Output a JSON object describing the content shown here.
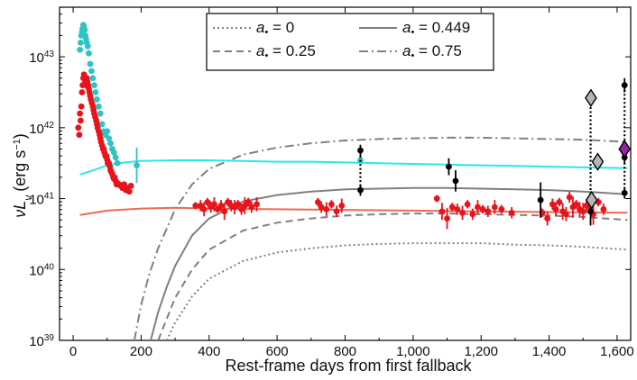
{
  "chart_data": {
    "type": "scatter",
    "xlabel": "Rest-frame days from first fallback",
    "ylabel_main": "νL",
    "ylabel_sub": "ν",
    "ylabel_unit": "(erg s",
    "ylabel_unit_exp": "−1",
    "ylabel_unit_close": ")",
    "xlim": [
      -40,
      1640
    ],
    "ylim_log10": [
      39,
      43.7
    ],
    "x_ticks": [
      {
        "value": 0,
        "label": "0"
      },
      {
        "value": 200,
        "label": "200"
      },
      {
        "value": 400,
        "label": "400"
      },
      {
        "value": 600,
        "label": "600"
      },
      {
        "value": 800,
        "label": "800"
      },
      {
        "value": 1000,
        "label": "1,000"
      },
      {
        "value": 1200,
        "label": "1,200"
      },
      {
        "value": 1400,
        "label": "1,400"
      },
      {
        "value": 1600,
        "label": "1,600"
      }
    ],
    "y_ticks": [
      {
        "exp": 39,
        "base": "10",
        "sup": "39"
      },
      {
        "exp": 40,
        "base": "10",
        "sup": "40"
      },
      {
        "exp": 41,
        "base": "10",
        "sup": "41"
      },
      {
        "exp": 42,
        "base": "10",
        "sup": "42"
      },
      {
        "exp": 43,
        "base": "10",
        "sup": "43"
      }
    ],
    "legend": {
      "location": "top-center",
      "entries": [
        {
          "label": "0",
          "style": "dotted"
        },
        {
          "label": "0.449",
          "style": "solid"
        },
        {
          "label": "0.25",
          "style": "dashed"
        },
        {
          "label": "0.75",
          "style": "dashdot"
        }
      ],
      "prefix": "a",
      "bullet": "•",
      "equals": " = "
    },
    "colors": {
      "red": "#e8131b",
      "cyan": "#2ec4c4",
      "cyan_line": "#27e8ec",
      "salmon_line": "#ec6a56",
      "model_gray": "#808080",
      "black": "#000000",
      "magenta": "#9a1fa8",
      "diamond_fill": "#b5b5b5"
    },
    "series": [
      {
        "name": "model a=0",
        "style": "dotted",
        "x": [
          275,
          300,
          350,
          400,
          500,
          600,
          700,
          800,
          900,
          1000,
          1100,
          1200,
          1300,
          1400,
          1500,
          1630
        ],
        "log_y": [
          39.0,
          39.25,
          39.62,
          39.87,
          40.12,
          40.24,
          40.3,
          40.34,
          40.36,
          40.37,
          40.37,
          40.37,
          40.35,
          40.34,
          40.32,
          40.28
        ]
      },
      {
        "name": "model a=0.25",
        "style": "dashed",
        "x": [
          250,
          275,
          300,
          350,
          400,
          500,
          600,
          700,
          800,
          900,
          1000,
          1100,
          1200,
          1300,
          1400,
          1500,
          1630
        ],
        "log_y": [
          39.0,
          39.3,
          39.6,
          40.0,
          40.28,
          40.55,
          40.66,
          40.72,
          40.76,
          40.78,
          40.79,
          40.79,
          40.78,
          40.77,
          40.76,
          40.74,
          40.7
        ]
      },
      {
        "name": "model a=0.449",
        "style": "solid",
        "x": [
          228,
          250,
          275,
          300,
          350,
          400,
          500,
          600,
          700,
          800,
          900,
          1000,
          1100,
          1200,
          1300,
          1400,
          1500,
          1630
        ],
        "log_y": [
          39.0,
          39.4,
          39.75,
          40.05,
          40.48,
          40.72,
          40.96,
          41.05,
          41.1,
          41.13,
          41.14,
          41.15,
          41.15,
          41.14,
          41.13,
          41.12,
          41.1,
          41.06
        ]
      },
      {
        "name": "model a=0.75",
        "style": "dashdot",
        "x": [
          180,
          200,
          225,
          250,
          300,
          350,
          400,
          500,
          600,
          700,
          800,
          900,
          1000,
          1100,
          1200,
          1300,
          1400,
          1500,
          1630
        ],
        "log_y": [
          39.0,
          39.5,
          39.95,
          40.3,
          40.85,
          41.2,
          41.42,
          41.62,
          41.72,
          41.78,
          41.82,
          41.84,
          41.85,
          41.86,
          41.86,
          41.85,
          41.84,
          41.83,
          41.8
        ]
      },
      {
        "name": "cyan model",
        "style": "cyan",
        "x": [
          20,
          60,
          100,
          150,
          200,
          300,
          400,
          500,
          600,
          700,
          800,
          900,
          1000,
          1100,
          1200,
          1300,
          1400,
          1500,
          1630
        ],
        "log_y": [
          41.34,
          41.4,
          41.47,
          41.51,
          41.53,
          41.54,
          41.54,
          41.53,
          41.52,
          41.52,
          41.51,
          41.5,
          41.49,
          41.48,
          41.47,
          41.46,
          41.45,
          41.44,
          41.43
        ]
      },
      {
        "name": "salmon model",
        "style": "salmon",
        "x": [
          20,
          100,
          200,
          300,
          400,
          600,
          800,
          1000,
          1200,
          1400,
          1630
        ],
        "log_y": [
          40.77,
          40.83,
          40.86,
          40.87,
          40.86,
          40.85,
          40.84,
          40.83,
          40.82,
          40.81,
          40.8
        ]
      },
      {
        "name": "cyan data",
        "type": "scatter",
        "x": [
          20,
          22,
          24,
          26,
          28,
          30,
          32,
          34,
          36,
          38,
          40,
          43,
          46,
          50,
          54,
          58,
          62,
          66,
          70,
          75,
          80,
          85,
          90,
          95,
          100,
          105,
          110,
          115,
          120,
          125,
          130
        ],
        "log_y": [
          43.1,
          43.2,
          43.3,
          43.35,
          43.4,
          43.45,
          43.42,
          43.38,
          43.3,
          43.25,
          43.2,
          43.15,
          43.05,
          42.9,
          42.8,
          42.7,
          42.6,
          42.5,
          42.4,
          42.3,
          42.2,
          42.05,
          41.95,
          41.9,
          41.95,
          41.85,
          41.78,
          41.7,
          41.65,
          41.58,
          41.5
        ]
      },
      {
        "name": "cyan data with errors",
        "type": "scatter",
        "x": [
          187,
          845,
          1543
        ],
        "log_y": [
          41.47,
          41.54,
          41.52
        ],
        "err_log": [
          0.25,
          0.0,
          0.0
        ]
      },
      {
        "name": "red data early",
        "type": "scatter",
        "x": [
          15,
          18,
          20,
          22,
          24,
          26,
          28,
          30,
          32,
          34,
          36,
          38,
          40,
          42,
          44,
          46,
          48,
          50,
          52,
          55,
          58,
          60,
          62,
          65,
          68,
          70,
          72,
          75,
          78,
          80,
          82,
          85,
          88,
          90,
          92,
          95,
          98,
          100,
          102,
          105,
          108,
          110,
          112,
          115,
          118,
          120,
          122,
          125,
          128,
          130,
          135,
          140,
          145,
          150,
          155,
          160,
          165,
          170
        ],
        "log_y": [
          42.0,
          41.9,
          42.2,
          42.1,
          42.3,
          42.5,
          42.6,
          42.7,
          42.75,
          42.7,
          42.65,
          42.6,
          42.7,
          42.65,
          42.6,
          42.55,
          42.5,
          42.45,
          42.4,
          42.35,
          42.3,
          42.25,
          42.2,
          42.15,
          42.1,
          42.05,
          42.0,
          41.95,
          41.9,
          41.85,
          41.8,
          41.75,
          41.7,
          41.7,
          41.65,
          41.6,
          41.6,
          41.55,
          41.5,
          41.5,
          41.45,
          41.4,
          41.38,
          41.35,
          41.3,
          41.28,
          41.3,
          41.25,
          41.2,
          41.22,
          41.2,
          41.18,
          41.15,
          41.2,
          41.12,
          41.15,
          41.1,
          41.18
        ]
      },
      {
        "name": "red data late",
        "type": "scatter",
        "x": [
          360,
          375,
          385,
          395,
          405,
          415,
          425,
          435,
          445,
          455,
          465,
          475,
          485,
          495,
          505,
          515,
          525,
          540,
          720,
          730,
          745,
          760,
          775,
          790,
          1070,
          1085,
          1100,
          1115,
          1130,
          1145,
          1160,
          1175,
          1190,
          1205,
          1220,
          1240,
          1260,
          1290,
          1380,
          1395,
          1410,
          1420,
          1430,
          1440,
          1450,
          1460,
          1470,
          1480,
          1490,
          1500,
          1510,
          1520,
          1530,
          1545,
          1560
        ],
        "log_y": [
          40.9,
          40.9,
          40.85,
          40.95,
          40.88,
          40.92,
          40.85,
          40.9,
          40.82,
          40.95,
          40.9,
          40.88,
          40.92,
          40.85,
          40.9,
          40.95,
          40.88,
          40.92,
          40.95,
          40.88,
          40.85,
          40.92,
          40.82,
          40.9,
          41.0,
          40.82,
          40.72,
          40.88,
          40.85,
          40.8,
          40.92,
          40.78,
          40.88,
          40.85,
          40.82,
          40.88,
          40.85,
          40.8,
          40.8,
          40.72,
          40.92,
          40.85,
          40.95,
          40.82,
          40.78,
          41.02,
          40.88,
          40.92,
          40.85,
          40.82,
          40.9,
          40.88,
          40.78,
          40.95,
          40.85
        ],
        "err_log": [
          0.05,
          0.08,
          0.1,
          0.06,
          0.08,
          0.1,
          0.05,
          0.08,
          0.12,
          0.06,
          0.08,
          0.1,
          0.06,
          0.08,
          0.12,
          0.06,
          0.08,
          0.1,
          0.06,
          0.08,
          0.1,
          0.06,
          0.08,
          0.1,
          0.05,
          0.12,
          0.15,
          0.06,
          0.08,
          0.1,
          0.06,
          0.08,
          0.1,
          0.06,
          0.08,
          0.1,
          0.06,
          0.08,
          0.06,
          0.1,
          0.08,
          0.1,
          0.06,
          0.12,
          0.1,
          0.08,
          0.15,
          0.06,
          0.1,
          0.12,
          0.08,
          0.1,
          0.15,
          0.06,
          0.08
        ]
      },
      {
        "name": "black data",
        "type": "scatter",
        "x": [
          845,
          845,
          1105,
          1125,
          1375,
          1522,
          1622,
          1622
        ],
        "log_y": [
          41.68,
          41.12,
          41.45,
          41.25,
          40.98,
          40.82,
          41.58,
          41.08
        ],
        "err_log": [
          0.08,
          0.08,
          0.12,
          0.15,
          0.25,
          0.2,
          0.08,
          0.08
        ]
      },
      {
        "name": "dotted vertical links",
        "type": "segments",
        "pairs": [
          {
            "x": 845,
            "y1": 41.12,
            "y2": 41.68
          },
          {
            "x": 1522,
            "y1": 40.95,
            "y2": 42.42
          },
          {
            "x": 1622,
            "y1": 41.08,
            "y2": 42.6
          }
        ]
      },
      {
        "name": "gray diamonds",
        "type": "scatter",
        "x": [
          1523,
          1543,
          1525
        ],
        "log_y": [
          42.42,
          41.52,
          40.98
        ]
      },
      {
        "name": "magenta diamond",
        "type": "scatter",
        "x": [
          1622
        ],
        "log_y": [
          41.7
        ]
      },
      {
        "name": "black top point",
        "type": "scatter",
        "x": [
          1622
        ],
        "log_y": [
          42.6
        ],
        "err_log": [
          0.1
        ]
      }
    ]
  }
}
